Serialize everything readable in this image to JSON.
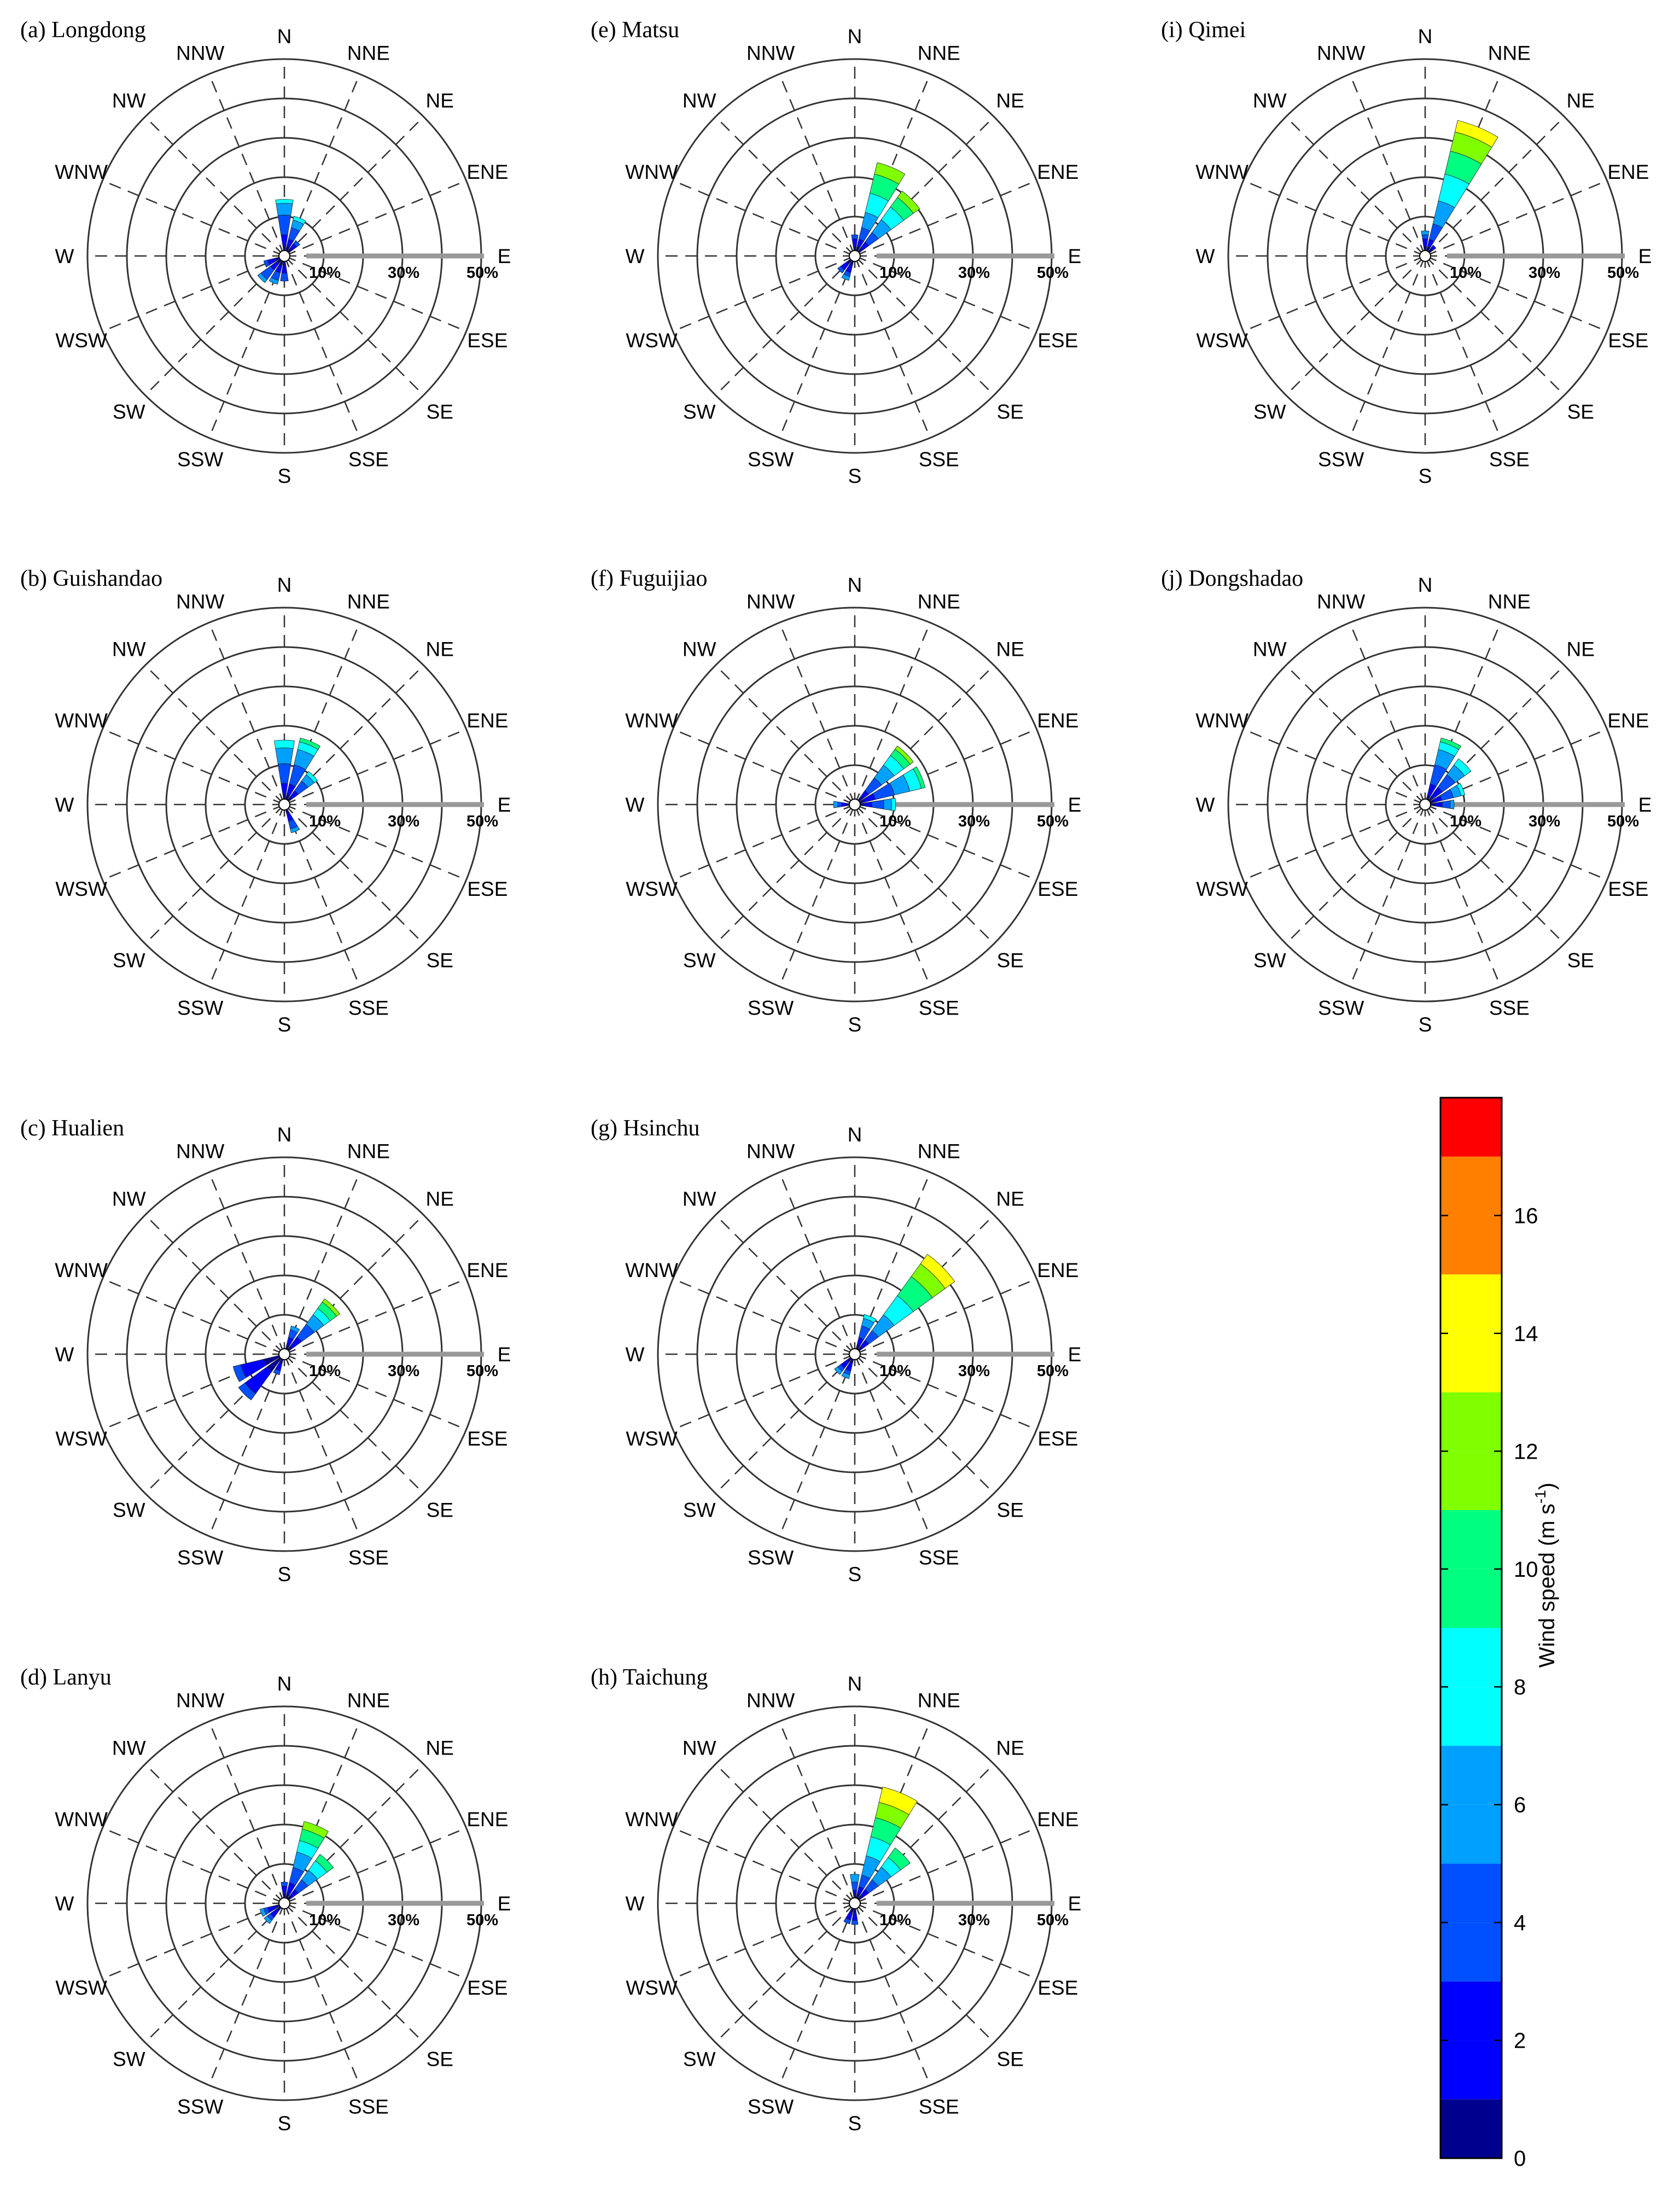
{
  "chart_data": {
    "type": "wind-rose",
    "directions": [
      "N",
      "NNE",
      "NE",
      "ENE",
      "E",
      "ESE",
      "SE",
      "SSE",
      "S",
      "SSW",
      "SW",
      "WSW",
      "W",
      "WNW",
      "NW",
      "NNW"
    ],
    "rings": [
      10,
      20,
      30,
      40,
      50
    ],
    "ring_labels": [
      "10%",
      "30%",
      "50%"
    ],
    "units": "% frequency",
    "speed_bins": [
      0,
      2,
      4,
      6,
      8,
      10,
      12,
      14,
      16,
      18
    ],
    "colorbar": {
      "title": "Wind speed (m s",
      "title_sup": "-1",
      "title_close": ")",
      "ticks": [
        "0",
        "2",
        "4",
        "6",
        "8",
        "10",
        "12",
        "14",
        "16"
      ],
      "colors": [
        "#00008f",
        "#0000ff",
        "#0050ff",
        "#00a0ff",
        "#00ffff",
        "#00ff80",
        "#80ff00",
        "#ffff00",
        "#ff8000",
        "#ff0000",
        "#800000"
      ]
    },
    "panels": [
      {
        "title": "(a) Longdong",
        "data": {
          "N": [
            1,
            3,
            5,
            3,
            1
          ],
          "NNE": [
            1,
            2,
            3,
            2,
            1
          ],
          "NE": [
            1,
            1.5,
            1
          ],
          "SSW": [
            1,
            2,
            2,
            1
          ],
          "SW": [
            1,
            2,
            3,
            1
          ],
          "WSW": [
            1,
            2,
            1
          ],
          "S": [
            1,
            2,
            2
          ]
        }
      },
      {
        "title": "(b) Guishandao",
        "data": {
          "N": [
            1,
            3,
            5,
            4,
            2
          ],
          "NNE": [
            1,
            3,
            5,
            4,
            2,
            1
          ],
          "NE": [
            1,
            2,
            3,
            2,
            1
          ],
          "SSE": [
            1,
            2,
            2,
            1
          ]
        }
      },
      {
        "title": "(c) Hualien",
        "data": {
          "NE": [
            1,
            3,
            4,
            3,
            2,
            2,
            1
          ],
          "NNE": [
            1,
            2,
            2,
            1
          ],
          "SW": [
            4,
            7,
            2
          ],
          "WSW": [
            4,
            6,
            2
          ],
          "SSW": [
            1,
            2,
            1
          ]
        }
      },
      {
        "title": "(d) Lanyu",
        "data": {
          "NNE": [
            1,
            3,
            4,
            4,
            3,
            3,
            2
          ],
          "NE": [
            1,
            2,
            3,
            3,
            3,
            2
          ],
          "N": [
            1,
            2,
            1
          ],
          "SW": [
            1,
            2,
            1,
            1
          ],
          "WSW": [
            1,
            2,
            1,
            1
          ]
        }
      },
      {
        "title": "(e) Matsu",
        "data": {
          "NNE": [
            1,
            2,
            3,
            4,
            5,
            5,
            3
          ],
          "NE": [
            1,
            2,
            3,
            4,
            4,
            3,
            2
          ],
          "N": [
            1,
            2,
            1
          ],
          "SSW": [
            1,
            2,
            1,
            1
          ],
          "SW": [
            1,
            2,
            1
          ]
        }
      },
      {
        "title": "(f) Fuguijiao",
        "data": {
          "ENE": [
            1,
            3,
            5,
            4,
            3,
            1
          ],
          "NE": [
            1,
            2,
            4,
            4,
            3,
            2,
            1
          ],
          "E": [
            1,
            2,
            3,
            2,
            1
          ],
          "W": [
            1,
            1,
            1,
            1
          ]
        }
      },
      {
        "title": "(g) Hsinchu",
        "data": {
          "NE": [
            1,
            2,
            3,
            5,
            6,
            6,
            4,
            3
          ],
          "NNE": [
            1,
            2,
            3,
            2,
            1
          ],
          "SSW": [
            1,
            2,
            1,
            1
          ],
          "SW": [
            1,
            2,
            1,
            1
          ]
        }
      },
      {
        "title": "(h) Taichung",
        "data": {
          "NNE": [
            1,
            2,
            3,
            5,
            5,
            5,
            4,
            4
          ],
          "NE": [
            1,
            2,
            3,
            4,
            3,
            3
          ],
          "N": [
            1,
            1,
            2,
            2
          ],
          "S": [
            1,
            2,
            1
          ],
          "SSW": [
            1,
            2,
            1
          ]
        }
      },
      {
        "title": "(i) Qimei",
        "data": {
          "NNE": [
            1,
            2,
            4,
            6,
            7,
            6,
            5,
            3
          ],
          "N": [
            1,
            2,
            1,
            1
          ],
          "NE": [
            1,
            1
          ]
        }
      },
      {
        "title": "(j) Dongshadao",
        "data": {
          "NNE": [
            1,
            3,
            5,
            4,
            2,
            1
          ],
          "NE": [
            1,
            3,
            4,
            3,
            2
          ],
          "ENE": [
            1,
            2,
            3,
            2,
            1
          ],
          "E": [
            1,
            2,
            2,
            1
          ]
        }
      }
    ]
  }
}
